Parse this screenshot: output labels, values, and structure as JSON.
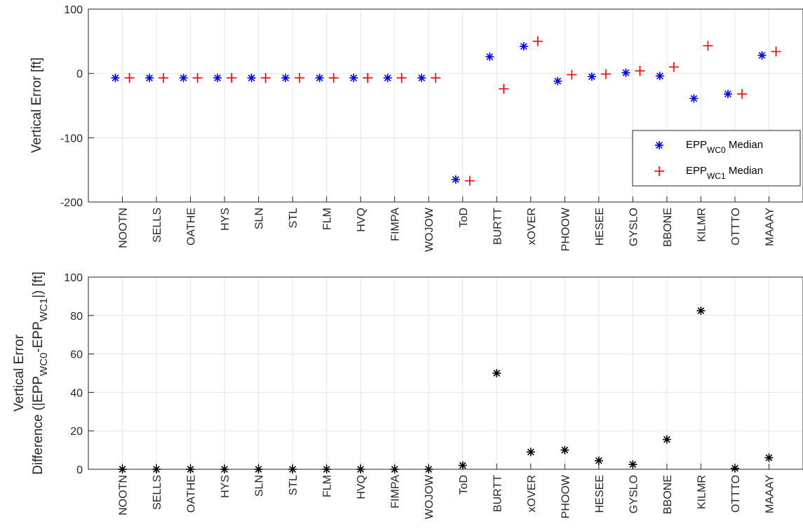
{
  "chart_data": [
    {
      "type": "scatter",
      "categories": [
        "NOOTN",
        "SELLS",
        "OATHE",
        "HYS",
        "SLN",
        "STL",
        "FLM",
        "HVQ",
        "FIMPA",
        "WOJOW",
        "ToD",
        "BURTT",
        "xOVER",
        "PHOOW",
        "HESEE",
        "GYSLO",
        "BBONE",
        "KILMR",
        "OTTTO",
        "MAAAY"
      ],
      "ylabel": "Vertical Error [ft]",
      "ylim": [
        -200,
        100
      ],
      "yticks": [
        "100",
        "0",
        "-100",
        "-200"
      ],
      "grid": true,
      "legend_position": "bottom-right",
      "legend": [
        {
          "prefix": "EPP",
          "sub": "WC0",
          "suffix": " Median"
        },
        {
          "prefix": "EPP",
          "sub": "WC1",
          "suffix": " Median"
        }
      ],
      "series": [
        {
          "marker": "asterisk",
          "color": "#0000ff",
          "values": [
            -7,
            -7,
            -7,
            -7,
            -7,
            -7,
            -7,
            -7,
            -7,
            -7,
            -165,
            26,
            42,
            -12,
            -5,
            1,
            -4,
            -39,
            -32,
            28
          ]
        },
        {
          "marker": "plus",
          "color": "#ff0000",
          "values": [
            -7,
            -7,
            -7,
            -7,
            -7,
            -7,
            -7,
            -7,
            -7,
            -7,
            -167,
            -24,
            50,
            -2,
            -1,
            4,
            10,
            43,
            -32,
            34
          ]
        }
      ]
    },
    {
      "type": "scatter",
      "categories": [
        "NOOTN",
        "SELLS",
        "OATHE",
        "HYS",
        "SLN",
        "STL",
        "FLM",
        "HVQ",
        "FIMPA",
        "WOJOW",
        "ToD",
        "BURTT",
        "xOVER",
        "PHOOW",
        "HESEE",
        "GYSLO",
        "BBONE",
        "KILMR",
        "OTTTO",
        "MAAAY"
      ],
      "ylabel_line1": "Vertical Error",
      "ylabel_line2": {
        "a": "Difference (|EPP",
        "b": "WC0",
        "c": "-EPP",
        "d": "WC1",
        "e": "|) [ft]"
      },
      "ylim": [
        0,
        100
      ],
      "yticks": [
        "100",
        "80",
        "60",
        "40",
        "20",
        "0"
      ],
      "grid": true,
      "series": [
        {
          "marker": "asterisk",
          "color": "#000000",
          "values": [
            0,
            0,
            0,
            0,
            0,
            0,
            0,
            0,
            0,
            0,
            2,
            50,
            9,
            10,
            4.5,
            2.5,
            15.5,
            82.5,
            0.5,
            6
          ]
        }
      ]
    }
  ]
}
